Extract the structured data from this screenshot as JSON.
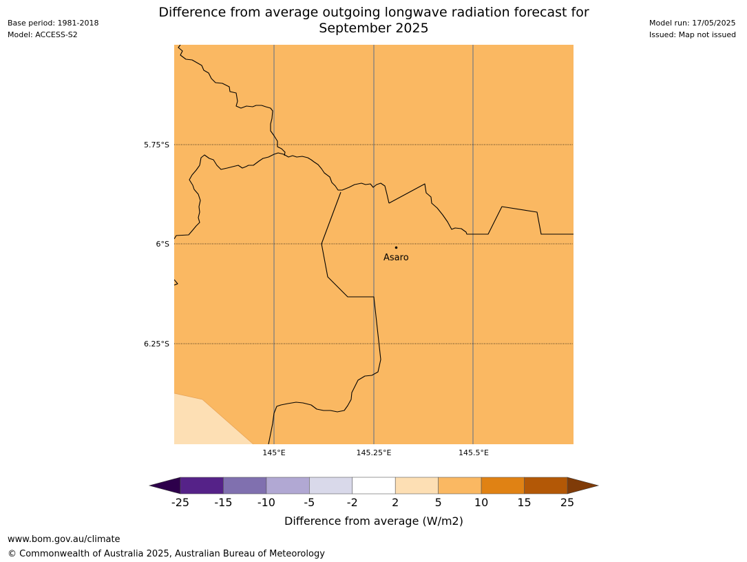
{
  "title": {
    "line1": "Difference from average outgoing longwave radiation forecast for",
    "line2": "September 2025"
  },
  "meta_left": {
    "base_period": "Base period: 1981-2018",
    "model": "Model: ACCESS-S2"
  },
  "meta_right": {
    "model_run": "Model run: 17/05/2025",
    "issued": "Issued: Map not issued"
  },
  "map": {
    "lat_labels": [
      "5.75°S",
      "6°S",
      "6.25°S"
    ],
    "lon_labels": [
      "145°E",
      "145.25°E",
      "145.5°E"
    ],
    "place": {
      "name": "Asaro"
    },
    "fill_colors": {
      "main": "#FAB862",
      "corner": "#FDDFB4"
    }
  },
  "colorbar": {
    "ticks": [
      "-25",
      "-15",
      "-10",
      "-5",
      "-2",
      "2",
      "5",
      "10",
      "15",
      "25"
    ],
    "colors": [
      "#552288",
      "#8070AF",
      "#B1A8D3",
      "#D9D9EA",
      "#FFFFFF",
      "#FDDFB4",
      "#FAB862",
      "#E08214",
      "#B35806"
    ],
    "under_color": "#2D004B",
    "over_color": "#7F3B08",
    "label": "Difference from average (W/m2)"
  },
  "footer": {
    "url": "www.bom.gov.au/climate",
    "copyright": "© Commonwealth of Australia 2025, Australian Bureau of Meteorology"
  }
}
